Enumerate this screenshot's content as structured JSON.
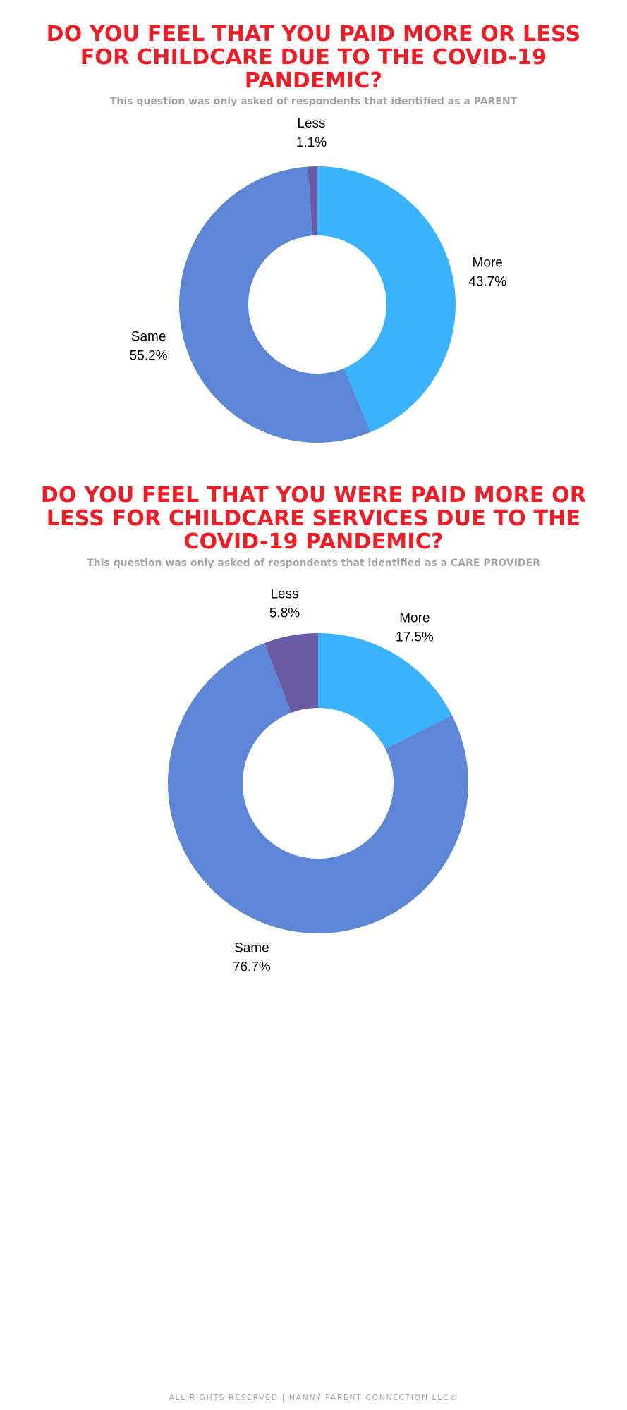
{
  "chart_data": [
    {
      "type": "pie",
      "title": "DO YOU FEEL THAT YOU PAID MORE OR LESS FOR CHILDCARE DUE TO THE COVID-19 PANDEMIC?",
      "subtitle": "This question was only asked of respondents that identified as a PARENT",
      "donut": true,
      "start": "12 o'clock, clockwise",
      "slices": [
        {
          "label": "More",
          "value": 43.7,
          "value_label": "43.7%",
          "color": "#39b3ff"
        },
        {
          "label": "Same",
          "value": 55.2,
          "value_label": "55.2%",
          "color": "#5d87d6"
        },
        {
          "label": "Less",
          "value": 1.1,
          "value_label": "1.1%",
          "color": "#6a5ba5"
        }
      ]
    },
    {
      "type": "pie",
      "title": "DO YOU FEEL THAT YOU WERE PAID MORE OR LESS FOR CHILDCARE SERVICES DUE TO THE COVID-19 PANDEMIC?",
      "subtitle": "This question was only asked of respondents that identified as a CARE PROVIDER",
      "donut": true,
      "start": "12 o'clock, clockwise",
      "slices": [
        {
          "label": "More",
          "value": 17.5,
          "value_label": "17.5%",
          "color": "#39b3ff"
        },
        {
          "label": "Same",
          "value": 76.7,
          "value_label": "76.7%",
          "color": "#5d87d6"
        },
        {
          "label": "Less",
          "value": 5.8,
          "value_label": "5.8%",
          "color": "#6a5ba5"
        }
      ]
    }
  ],
  "footer": "ALL RIGHTS RESERVED | NANNY PARENT CONNECTION LLC©"
}
